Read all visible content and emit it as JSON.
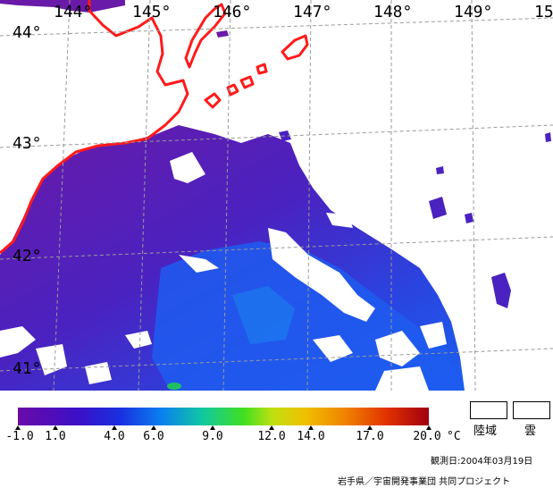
{
  "map": {
    "longitude_labels": [
      "144°",
      "145°",
      "146°",
      "147°",
      "148°",
      "149°",
      "15"
    ],
    "latitude_labels": [
      "44°",
      "43°",
      "42°",
      "41°"
    ],
    "colors": {
      "land_outline": "#ff1a1a",
      "cold_water": "#6a1aa8",
      "mid_water": "#3a2ad0",
      "warm_water": "#1a5af0",
      "cloud": "#ffffff",
      "grid": "#9a9a9a"
    }
  },
  "colorbar": {
    "tick_labels": [
      "-1.0",
      "1.0",
      "4.0",
      "6.0",
      "9.0",
      "12.0",
      "14.0",
      "17.0",
      "20.0"
    ],
    "unit": "°C",
    "range": [
      -1.0,
      20.0
    ]
  },
  "legend": {
    "land_label": "陸域",
    "cloud_label": "雲"
  },
  "footer": {
    "observation_date": "観測日:2004年03月19日",
    "credit": "岩手県／宇宙開発事業団 共同プロジェクト"
  }
}
